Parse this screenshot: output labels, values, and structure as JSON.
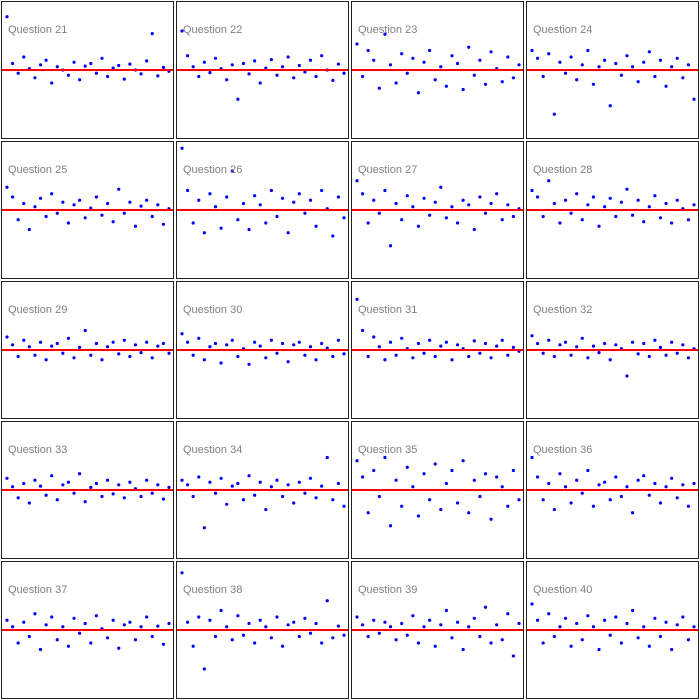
{
  "chart_data": [
    {
      "type": "scatter",
      "title": "Question 21",
      "ylim": [
        -1,
        1
      ],
      "color": "#0000ff",
      "reference_line": 0,
      "reference_color": "#ff0000",
      "values": [
        0.82,
        0.1,
        -0.05,
        0.2,
        0.02,
        -0.12,
        0.08,
        0.15,
        -0.2,
        0.05,
        0.0,
        -0.08,
        0.12,
        -0.15,
        0.06,
        0.1,
        -0.05,
        0.18,
        -0.1,
        0.03,
        0.07,
        -0.14,
        0.09,
        0.0,
        -0.06,
        0.14,
        0.56,
        -0.09,
        0.04,
        -0.02
      ]
    },
    {
      "type": "scatter",
      "title": "Question 22",
      "ylim": [
        -1,
        1
      ],
      "color": "#0000ff",
      "reference_line": 0,
      "reference_color": "#ff0000",
      "values": [
        0.6,
        0.22,
        0.05,
        -0.1,
        0.12,
        -0.04,
        0.18,
        0.02,
        -0.15,
        0.08,
        -0.45,
        0.1,
        -0.06,
        0.14,
        -0.2,
        0.03,
        0.16,
        -0.08,
        0.05,
        0.2,
        -0.12,
        0.07,
        -0.03,
        0.15,
        -0.1,
        0.22,
        0.0,
        -0.16,
        0.09,
        -0.05
      ]
    },
    {
      "type": "scatter",
      "title": "Question 23",
      "ylim": [
        -1,
        1
      ],
      "color": "#0000ff",
      "reference_line": 0,
      "reference_color": "#ff0000",
      "values": [
        0.4,
        -0.1,
        0.3,
        0.15,
        -0.28,
        0.55,
        0.08,
        -0.2,
        0.25,
        -0.05,
        0.18,
        -0.35,
        0.12,
        0.3,
        -0.15,
        0.05,
        -0.25,
        0.22,
        0.1,
        -0.3,
        0.35,
        -0.08,
        0.15,
        -0.22,
        0.28,
        0.02,
        -0.18,
        0.2,
        -0.12,
        0.08
      ]
    },
    {
      "type": "scatter",
      "title": "Question 24",
      "ylim": [
        -1,
        1
      ],
      "color": "#0000ff",
      "reference_line": 0,
      "reference_color": "#ff0000",
      "values": [
        0.3,
        0.18,
        -0.1,
        0.25,
        -0.68,
        0.12,
        -0.05,
        0.2,
        -0.15,
        0.08,
        0.3,
        -0.22,
        0.05,
        0.15,
        -0.55,
        0.1,
        -0.08,
        0.22,
        0.05,
        -0.18,
        0.12,
        0.28,
        -0.1,
        0.15,
        -0.25,
        0.05,
        0.18,
        -0.12,
        0.08,
        -0.45
      ]
    },
    {
      "type": "scatter",
      "title": "Question 25",
      "ylim": [
        -1,
        1
      ],
      "color": "#0000ff",
      "reference_line": 0,
      "reference_color": "#ff0000",
      "values": [
        0.35,
        0.2,
        -0.15,
        0.1,
        -0.3,
        0.05,
        0.18,
        -0.1,
        0.25,
        -0.05,
        0.12,
        -0.2,
        0.08,
        0.15,
        -0.12,
        0.03,
        0.2,
        -0.08,
        0.1,
        -0.18,
        0.32,
        -0.05,
        0.12,
        -0.25,
        0.06,
        0.15,
        -0.1,
        0.08,
        -0.22,
        0.02
      ]
    },
    {
      "type": "scatter",
      "title": "Question 26",
      "ylim": [
        -1,
        1
      ],
      "color": "#0000ff",
      "reference_line": 0,
      "reference_color": "#ff0000",
      "values": [
        0.95,
        0.3,
        -0.2,
        0.15,
        -0.35,
        0.25,
        0.05,
        -0.28,
        0.2,
        0.6,
        -0.15,
        0.1,
        -0.3,
        0.22,
        0.08,
        -0.2,
        0.3,
        -0.1,
        0.18,
        -0.35,
        0.12,
        0.25,
        -0.05,
        0.15,
        -0.25,
        0.3,
        0.02,
        -0.4,
        0.2,
        -0.12
      ]
    },
    {
      "type": "scatter",
      "title": "Question 27",
      "ylim": [
        -1,
        1
      ],
      "color": "#0000ff",
      "reference_line": 0,
      "reference_color": "#ff0000",
      "values": [
        0.45,
        0.25,
        -0.2,
        0.15,
        -0.05,
        0.3,
        -0.55,
        0.1,
        -0.15,
        0.22,
        0.05,
        -0.25,
        0.18,
        -0.08,
        0.12,
        0.35,
        -0.12,
        0.05,
        -0.2,
        0.15,
        0.08,
        -0.3,
        0.2,
        -0.05,
        0.1,
        0.25,
        -0.15,
        0.08,
        -0.1,
        0.02
      ]
    },
    {
      "type": "scatter",
      "title": "Question 28",
      "ylim": [
        -1,
        1
      ],
      "color": "#0000ff",
      "reference_line": 0,
      "reference_color": "#ff0000",
      "values": [
        0.3,
        0.2,
        -0.1,
        0.45,
        0.1,
        -0.2,
        0.15,
        -0.05,
        0.25,
        -0.15,
        0.08,
        0.2,
        -0.25,
        0.05,
        0.18,
        -0.1,
        0.12,
        0.32,
        -0.08,
        0.15,
        -0.18,
        0.05,
        0.22,
        -0.12,
        0.1,
        -0.2,
        0.15,
        0.02,
        -0.15,
        0.08
      ]
    },
    {
      "type": "scatter",
      "title": "Question 29",
      "ylim": [
        -1,
        1
      ],
      "color": "#0000ff",
      "reference_line": 0,
      "reference_color": "#ff0000",
      "values": [
        0.2,
        0.08,
        -0.1,
        0.15,
        0.05,
        -0.08,
        0.12,
        -0.15,
        0.06,
        0.1,
        -0.05,
        0.18,
        -0.12,
        0.04,
        0.3,
        -0.08,
        0.1,
        -0.15,
        0.05,
        0.12,
        -0.06,
        0.15,
        -0.1,
        0.08,
        -0.04,
        0.12,
        -0.12,
        0.06,
        0.1,
        -0.05
      ]
    },
    {
      "type": "scatter",
      "title": "Question 30",
      "ylim": [
        -1,
        1
      ],
      "color": "#0000ff",
      "reference_line": 0,
      "reference_color": "#ff0000",
      "values": [
        0.25,
        0.12,
        -0.08,
        0.18,
        -0.15,
        0.05,
        0.1,
        -0.2,
        0.08,
        0.15,
        -0.1,
        0.02,
        -0.22,
        0.12,
        0.06,
        -0.12,
        0.15,
        -0.05,
        0.1,
        -0.18,
        0.08,
        0.12,
        -0.08,
        0.05,
        -0.15,
        0.1,
        0.03,
        -0.1,
        0.15,
        -0.06
      ]
    },
    {
      "type": "scatter",
      "title": "Question 31",
      "ylim": [
        -1,
        1
      ],
      "color": "#0000ff",
      "reference_line": 0,
      "reference_color": "#ff0000",
      "values": [
        0.78,
        0.3,
        -0.1,
        0.2,
        0.05,
        -0.15,
        0.12,
        -0.08,
        0.18,
        0.02,
        -0.12,
        0.1,
        -0.05,
        0.15,
        -0.1,
        0.06,
        0.12,
        -0.15,
        0.08,
        0.02,
        -0.1,
        0.14,
        -0.05,
        0.1,
        -0.12,
        0.06,
        0.15,
        -0.08,
        0.04,
        -0.02
      ]
    },
    {
      "type": "scatter",
      "title": "Question 32",
      "ylim": [
        -1,
        1
      ],
      "color": "#0000ff",
      "reference_line": 0,
      "reference_color": "#ff0000",
      "values": [
        0.22,
        0.1,
        -0.05,
        0.15,
        -0.1,
        0.08,
        0.12,
        -0.08,
        0.05,
        0.18,
        -0.12,
        0.06,
        -0.04,
        0.1,
        -0.15,
        0.08,
        0.02,
        -0.4,
        0.12,
        -0.06,
        0.1,
        -0.1,
        0.15,
        0.04,
        -0.08,
        0.12,
        -0.05,
        0.08,
        -0.12,
        0.02
      ]
    },
    {
      "type": "scatter",
      "title": "Question 33",
      "ylim": [
        -1,
        1
      ],
      "color": "#0000ff",
      "reference_line": 0,
      "reference_color": "#ff0000",
      "values": [
        0.18,
        0.05,
        -0.12,
        0.1,
        -0.2,
        0.15,
        0.06,
        -0.08,
        0.22,
        -0.15,
        0.08,
        0.12,
        -0.05,
        0.25,
        -0.18,
        0.04,
        0.1,
        -0.1,
        0.15,
        -0.06,
        0.08,
        -0.12,
        0.12,
        0.02,
        -0.1,
        0.15,
        -0.05,
        0.08,
        -0.14,
        0.04
      ]
    },
    {
      "type": "scatter",
      "title": "Question 34",
      "ylim": [
        -1,
        1
      ],
      "color": "#0000ff",
      "reference_line": 0,
      "reference_color": "#ff0000",
      "values": [
        0.15,
        0.08,
        -0.1,
        0.2,
        -0.58,
        0.12,
        -0.05,
        0.18,
        -0.22,
        0.06,
        0.1,
        -0.15,
        0.22,
        -0.08,
        0.12,
        -0.3,
        0.05,
        0.15,
        -0.1,
        0.08,
        -0.2,
        0.12,
        -0.05,
        0.18,
        -0.12,
        0.06,
        0.5,
        -0.15,
        0.1,
        -0.25
      ]
    },
    {
      "type": "scatter",
      "title": "Question 35",
      "ylim": [
        -1,
        1
      ],
      "color": "#0000ff",
      "reference_line": 0,
      "reference_color": "#ff0000",
      "values": [
        0.45,
        0.2,
        -0.35,
        0.3,
        -0.1,
        0.5,
        -0.55,
        0.15,
        -0.25,
        0.35,
        0.05,
        -0.4,
        0.25,
        -0.15,
        0.4,
        -0.3,
        0.1,
        0.3,
        -0.2,
        0.45,
        -0.35,
        0.15,
        -0.1,
        0.25,
        -0.45,
        0.2,
        0.05,
        -0.25,
        0.3,
        -0.15
      ]
    },
    {
      "type": "scatter",
      "title": "Question 36",
      "ylim": [
        -1,
        1
      ],
      "color": "#0000ff",
      "reference_line": 0,
      "reference_color": "#ff0000",
      "values": [
        0.5,
        0.2,
        -0.15,
        0.1,
        -0.3,
        0.25,
        0.05,
        -0.2,
        0.15,
        -0.05,
        0.3,
        -0.25,
        0.08,
        0.12,
        -0.15,
        0.2,
        -0.1,
        0.05,
        -0.35,
        0.15,
        0.22,
        -0.08,
        0.1,
        -0.2,
        0.05,
        0.18,
        -0.12,
        0.08,
        -0.25,
        0.1
      ]
    },
    {
      "type": "scatter",
      "title": "Question 37",
      "ylim": [
        -1,
        1
      ],
      "color": "#0000ff",
      "reference_line": 0,
      "reference_color": "#ff0000",
      "values": [
        0.15,
        0.05,
        -0.2,
        0.12,
        -0.1,
        0.25,
        -0.3,
        0.08,
        0.2,
        -0.15,
        0.05,
        -0.25,
        0.18,
        -0.05,
        0.1,
        -0.2,
        0.22,
        0.02,
        -0.12,
        0.15,
        -0.28,
        0.08,
        0.12,
        -0.15,
        0.05,
        0.2,
        -0.1,
        0.06,
        -0.22,
        0.1
      ]
    },
    {
      "type": "scatter",
      "title": "Question 38",
      "ylim": [
        -1,
        1
      ],
      "color": "#0000ff",
      "reference_line": 0,
      "reference_color": "#ff0000",
      "values": [
        0.88,
        0.12,
        -0.25,
        0.2,
        -0.6,
        0.15,
        -0.1,
        0.3,
        0.05,
        -0.15,
        0.22,
        -0.08,
        0.1,
        -0.2,
        0.15,
        0.05,
        -0.12,
        0.2,
        -0.25,
        0.08,
        0.12,
        -0.1,
        0.18,
        -0.05,
        0.1,
        -0.2,
        0.45,
        -0.12,
        0.06,
        -0.08
      ]
    },
    {
      "type": "scatter",
      "title": "Question 39",
      "ylim": [
        -1,
        1
      ],
      "color": "#0000ff",
      "reference_line": 0,
      "reference_color": "#ff0000",
      "values": [
        0.2,
        0.08,
        -0.1,
        0.15,
        -0.05,
        0.12,
        0.05,
        -0.15,
        0.1,
        -0.08,
        0.22,
        -0.2,
        0.05,
        0.15,
        -0.25,
        0.08,
        0.3,
        -0.12,
        0.12,
        -0.3,
        0.05,
        0.18,
        -0.1,
        0.35,
        -0.2,
        0.08,
        -0.15,
        0.25,
        -0.4,
        0.1
      ]
    },
    {
      "type": "scatter",
      "title": "Question 40",
      "ylim": [
        -1,
        1
      ],
      "color": "#0000ff",
      "reference_line": 0,
      "reference_color": "#ff0000",
      "values": [
        0.4,
        0.15,
        -0.2,
        0.25,
        -0.1,
        0.05,
        0.18,
        -0.25,
        0.1,
        -0.15,
        0.22,
        0.05,
        -0.3,
        0.15,
        -0.08,
        0.2,
        -0.2,
        0.1,
        0.3,
        -0.12,
        0.05,
        -0.25,
        0.18,
        -0.1,
        0.12,
        -0.3,
        0.08,
        0.2,
        -0.15,
        0.05
      ]
    }
  ]
}
